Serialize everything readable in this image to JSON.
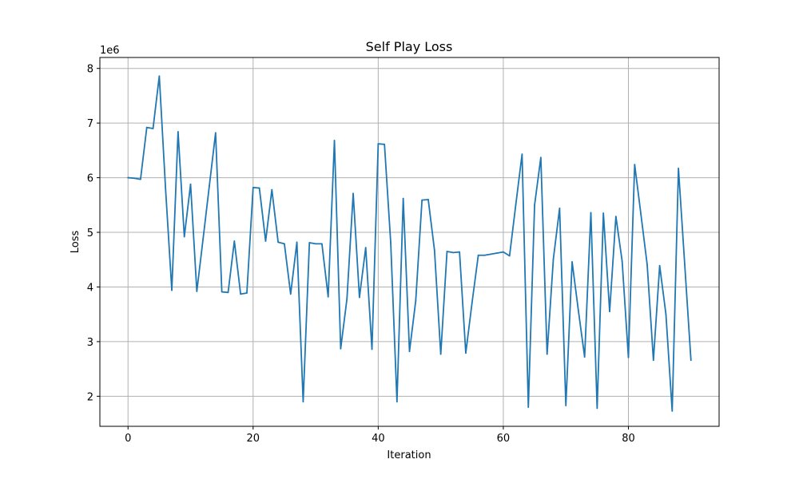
{
  "chart_data": {
    "type": "line",
    "title": "Self Play Loss",
    "xlabel": "Iteration",
    "ylabel": "Loss",
    "y_offset_label": "1e6",
    "xlim": [
      -4.5,
      94.5
    ],
    "ylim": [
      1.45,
      8.2
    ],
    "x_ticks": [
      0,
      20,
      40,
      60,
      80
    ],
    "y_ticks": [
      2,
      3,
      4,
      5,
      6,
      7,
      8
    ],
    "grid": true,
    "line_color": "#1f77b4",
    "series": [
      {
        "x": [
          0,
          1,
          2,
          3,
          4,
          5,
          6,
          7,
          8,
          9,
          10,
          11,
          12,
          13,
          14,
          15,
          16,
          17,
          18,
          19,
          20,
          21,
          22,
          23,
          24,
          25,
          26,
          27,
          28,
          29,
          30,
          31,
          32,
          33,
          34,
          35,
          36,
          37,
          38,
          39,
          40,
          41,
          42,
          43,
          44,
          45,
          46,
          47,
          48,
          49,
          50,
          51,
          52,
          53,
          54,
          55,
          56,
          57,
          58,
          59,
          60,
          61,
          62,
          63,
          64,
          65,
          66,
          67,
          68,
          69,
          70,
          71,
          72,
          73,
          74,
          75,
          76,
          77,
          78,
          79,
          80,
          81,
          82,
          83,
          84,
          85,
          86,
          87,
          88,
          89,
          90
        ],
        "y": [
          6.0,
          5.99,
          5.97,
          6.92,
          6.9,
          7.86,
          5.8,
          3.94,
          6.84,
          4.92,
          5.88,
          3.92,
          4.88,
          5.85,
          6.82,
          3.91,
          3.9,
          4.84,
          3.87,
          3.89,
          5.82,
          5.81,
          4.84,
          5.78,
          4.82,
          4.79,
          3.87,
          4.82,
          1.9,
          4.81,
          4.79,
          4.79,
          3.82,
          6.68,
          2.87,
          3.78,
          5.71,
          3.81,
          4.72,
          2.86,
          6.62,
          6.61,
          4.81,
          1.9,
          5.62,
          2.82,
          3.75,
          5.59,
          5.6,
          4.67,
          2.77,
          4.65,
          4.63,
          4.64,
          2.79,
          3.71,
          4.58,
          4.58,
          4.6,
          4.62,
          4.64,
          4.57,
          5.51,
          6.43,
          1.8,
          5.5,
          6.37,
          2.77,
          4.51,
          5.44,
          1.83,
          4.46,
          3.57,
          2.72,
          5.36,
          1.78,
          5.35,
          3.55,
          5.29,
          4.47,
          2.71,
          6.24,
          5.33,
          4.41,
          2.66,
          4.39,
          3.5,
          1.73,
          6.17,
          4.42,
          2.66
        ]
      }
    ]
  }
}
